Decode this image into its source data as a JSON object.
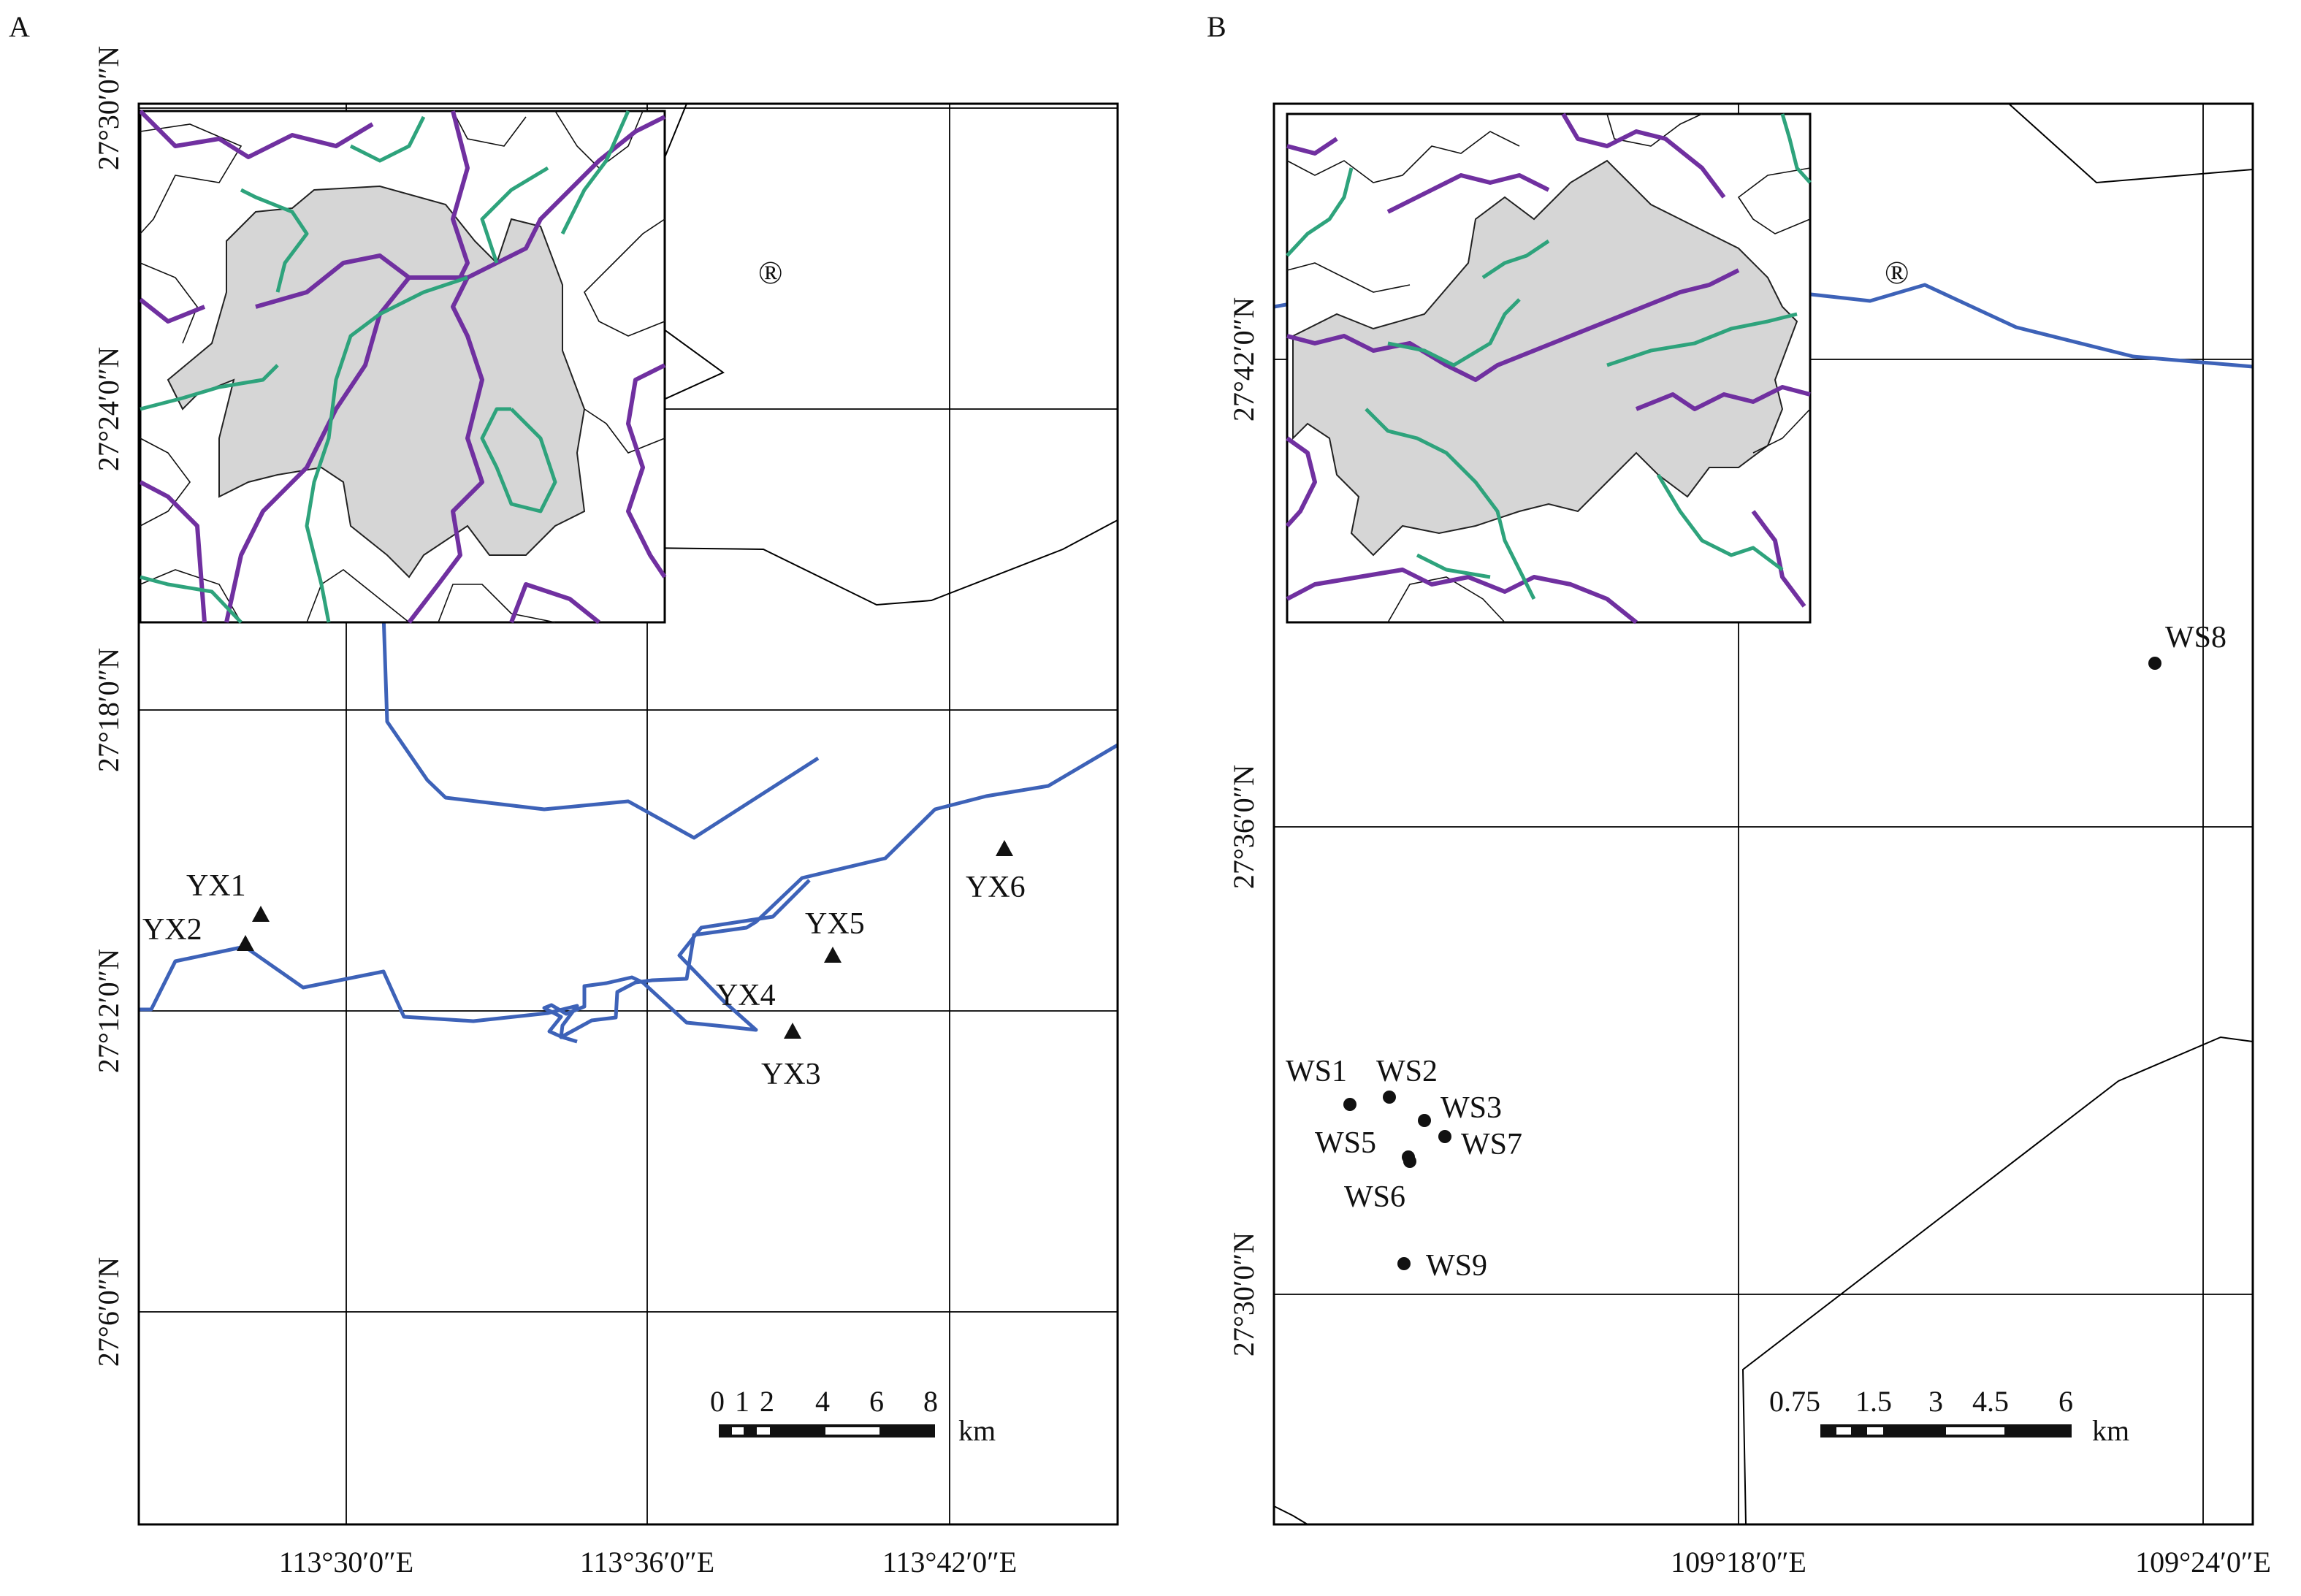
{
  "panels": [
    {
      "label": "A",
      "lat_labels": [
        "27°30′0″N",
        "27°24′0″N",
        "27°18′0″N",
        "27°12′0″N",
        "27°6′0″N"
      ],
      "lon_labels": [
        "113°30′0″E",
        "113°36′0″E",
        "113°42′0″E"
      ],
      "symbol": "®",
      "sites": [
        "YX1",
        "YX2",
        "YX3",
        "YX4",
        "YX5",
        "YX6"
      ],
      "site_marker": "triangle",
      "scale_ticks": [
        "0",
        "1",
        "2",
        "4",
        "6",
        "8"
      ],
      "scale_unit": "km"
    },
    {
      "label": "B",
      "lat_labels": [
        "27°42′0″N",
        "27°36′0″N",
        "27°30′0″N"
      ],
      "lon_labels": [
        "109°18′0″E",
        "109°24′0″E"
      ],
      "symbol": "®",
      "sites": [
        "WS1",
        "WS2",
        "WS3",
        "WS5",
        "WS6",
        "WS7",
        "WS8",
        "WS9"
      ],
      "site_marker": "dot",
      "scale_ticks": [
        "0.75",
        "1.5",
        "3",
        "4.5",
        "6"
      ],
      "scale_unit": "km"
    }
  ],
  "colors": {
    "river": "#3d62b8",
    "inset_purple": "#7030a0",
    "inset_green": "#2ea37c",
    "county_fill": "#d6d6d6"
  }
}
